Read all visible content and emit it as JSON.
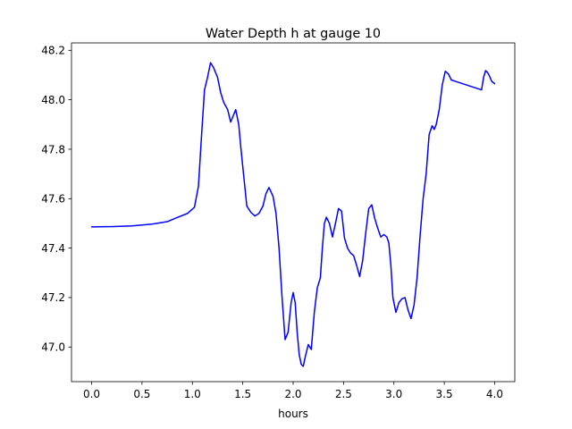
{
  "chart_data": {
    "type": "line",
    "title": "Water Depth h at gauge 10",
    "xlabel": "hours",
    "ylabel": "",
    "xlim": [
      -0.2,
      4.2
    ],
    "ylim": [
      46.86,
      48.23
    ],
    "xticks": [
      0.0,
      0.5,
      1.0,
      1.5,
      2.0,
      2.5,
      3.0,
      3.5,
      4.0
    ],
    "xtick_labels": [
      "0.0",
      "0.5",
      "1.0",
      "1.5",
      "2.0",
      "2.5",
      "3.0",
      "3.5",
      "4.0"
    ],
    "yticks": [
      47.0,
      47.2,
      47.4,
      47.6,
      47.8,
      48.0,
      48.2
    ],
    "ytick_labels": [
      "47.0",
      "47.2",
      "47.4",
      "47.6",
      "47.8",
      "48.0",
      "48.2"
    ],
    "grid": false,
    "series": [
      {
        "color": "#0000ff",
        "x": [
          0.0,
          0.2,
          0.4,
          0.6,
          0.75,
          0.85,
          0.95,
          1.02,
          1.06,
          1.09,
          1.12,
          1.15,
          1.18,
          1.21,
          1.23,
          1.25,
          1.28,
          1.31,
          1.35,
          1.38,
          1.4,
          1.43,
          1.46,
          1.48,
          1.51,
          1.54,
          1.58,
          1.62,
          1.66,
          1.7,
          1.73,
          1.76,
          1.8,
          1.83,
          1.86,
          1.89,
          1.92,
          1.95,
          1.98,
          2.0,
          2.02,
          2.04,
          2.06,
          2.08,
          2.1,
          2.12,
          2.15,
          2.18,
          2.21,
          2.24,
          2.27,
          2.29,
          2.31,
          2.33,
          2.36,
          2.39,
          2.42,
          2.45,
          2.48,
          2.51,
          2.54,
          2.57,
          2.6,
          2.63,
          2.66,
          2.69,
          2.72,
          2.75,
          2.78,
          2.81,
          2.84,
          2.87,
          2.9,
          2.93,
          2.95,
          2.97,
          2.99,
          3.02,
          3.05,
          3.08,
          3.11,
          3.14,
          3.17,
          3.2,
          3.23,
          3.26,
          3.29,
          3.32,
          3.35,
          3.38,
          3.4,
          3.42,
          3.45,
          3.48,
          3.51,
          3.54,
          3.57,
          3.6,
          3.63,
          3.66,
          3.69,
          3.72,
          3.75,
          3.78,
          3.81,
          3.84,
          3.87,
          3.89,
          3.91,
          3.93,
          3.95,
          3.97,
          4.0
        ],
        "y": [
          47.486,
          47.487,
          47.49,
          47.497,
          47.507,
          47.524,
          47.54,
          47.565,
          47.65,
          47.85,
          48.04,
          48.09,
          48.15,
          48.13,
          48.11,
          48.09,
          48.03,
          47.99,
          47.96,
          47.91,
          47.93,
          47.96,
          47.9,
          47.81,
          47.69,
          47.57,
          47.545,
          47.53,
          47.54,
          47.57,
          47.62,
          47.645,
          47.61,
          47.54,
          47.4,
          47.2,
          47.03,
          47.06,
          47.18,
          47.22,
          47.18,
          47.06,
          46.97,
          46.93,
          46.922,
          46.96,
          47.01,
          46.99,
          47.14,
          47.24,
          47.28,
          47.4,
          47.5,
          47.525,
          47.5,
          47.445,
          47.5,
          47.56,
          47.55,
          47.44,
          47.4,
          47.38,
          47.37,
          47.33,
          47.285,
          47.35,
          47.46,
          47.56,
          47.575,
          47.52,
          47.48,
          47.445,
          47.455,
          47.445,
          47.42,
          47.33,
          47.2,
          47.14,
          47.18,
          47.195,
          47.2,
          47.15,
          47.115,
          47.17,
          47.28,
          47.45,
          47.6,
          47.7,
          47.86,
          47.895,
          47.88,
          47.9,
          47.96,
          48.06,
          48.115,
          48.105,
          48.08,
          48.065,
          48.06,
          48.06,
          48.06,
          48.06,
          48.06,
          48.06,
          48.06,
          48.06,
          48.06,
          48.06,
          48.06,
          48.06,
          48.06,
          48.06,
          48.06
        ]
      }
    ]
  }
}
